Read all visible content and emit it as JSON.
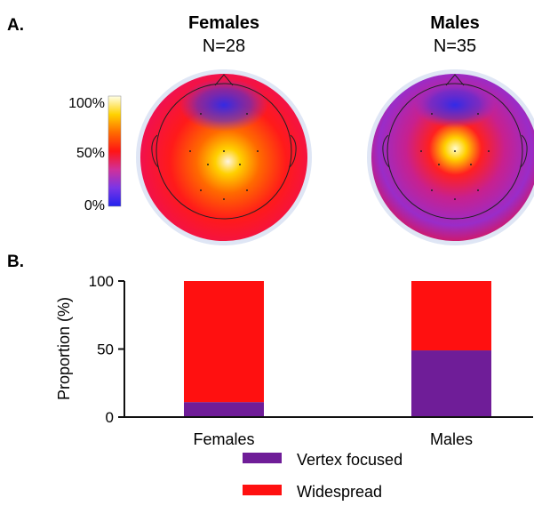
{
  "panel_a": {
    "label": "A.",
    "groups": [
      {
        "title": "Females",
        "n_label": "N=28"
      },
      {
        "title": "Males",
        "n_label": "N=35"
      }
    ],
    "colorbar": {
      "ticks": [
        "100%",
        "50%",
        "0%"
      ],
      "colors": [
        "#2222ee",
        "#7a35e6",
        "#d0309a",
        "#ff1414",
        "#ff6a00",
        "#ffd200",
        "#ffffe8"
      ]
    }
  },
  "panel_b": {
    "label": "B."
  },
  "chart_data": {
    "type": "bar",
    "stacked": true,
    "categories": [
      "Females",
      "Males"
    ],
    "series": [
      {
        "name": "Vertex focused",
        "color": "#6f1d98",
        "values": [
          11,
          49
        ]
      },
      {
        "name": "Widespread",
        "color": "#ff1010",
        "values": [
          89,
          51
        ]
      }
    ],
    "ylabel": "Proportion (%)",
    "ylim": [
      0,
      100
    ],
    "yticks": [
      0,
      50,
      100
    ],
    "grid": false,
    "legend": "bottom"
  }
}
